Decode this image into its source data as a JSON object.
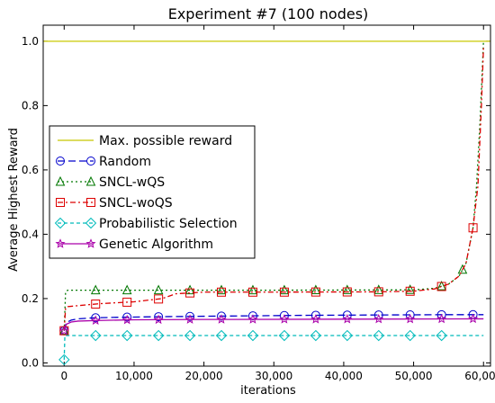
{
  "chart_data": {
    "type": "line",
    "title": "Experiment #7 (100 nodes)",
    "xlabel": "iterations",
    "ylabel": "Average Highest Reward",
    "xlim": [
      -3000,
      61000
    ],
    "ylim": [
      -0.01,
      1.05
    ],
    "xticks": [
      0,
      10000,
      20000,
      30000,
      40000,
      50000,
      60000
    ],
    "xtick_labels": [
      "0",
      "10,000",
      "20,000",
      "30,000",
      "40,000",
      "50,000",
      "60,000"
    ],
    "yticks": [
      0.0,
      0.2,
      0.4,
      0.6,
      0.8,
      1.0
    ],
    "ytick_labels": [
      "0.0",
      "0.2",
      "0.4",
      "0.6",
      "0.8",
      "1.0"
    ],
    "legend_position": "center-left",
    "grid": false,
    "series": [
      {
        "name": "Max. possible reward",
        "color": "#c8c800",
        "dash": "",
        "marker": "none",
        "x": [
          -3000,
          61000
        ],
        "y": [
          1.0,
          1.0
        ],
        "marker_x": []
      },
      {
        "name": "Random",
        "color": "#0000cc",
        "dash": "8,4",
        "marker": "circle",
        "x": [
          0,
          300,
          1000,
          2000,
          4000,
          8000,
          15000,
          25000,
          35000,
          45000,
          55000,
          60000
        ],
        "y": [
          0.1,
          0.125,
          0.133,
          0.137,
          0.14,
          0.142,
          0.144,
          0.146,
          0.148,
          0.149,
          0.15,
          0.15
        ],
        "marker_x": [
          0,
          4500,
          9000,
          13500,
          18000,
          22500,
          27000,
          31500,
          36000,
          40500,
          45000,
          49500,
          54000,
          58500
        ]
      },
      {
        "name": "SNCL-wQS",
        "color": "#007700",
        "dash": "2,3",
        "marker": "triangle",
        "x": [
          0,
          200,
          500,
          2000,
          10000,
          30000,
          50000,
          53000,
          55000,
          56500,
          57500,
          58500,
          59000,
          59500,
          60000
        ],
        "y": [
          0.1,
          0.22,
          0.226,
          0.226,
          0.226,
          0.226,
          0.227,
          0.232,
          0.245,
          0.27,
          0.31,
          0.42,
          0.55,
          0.75,
          1.0
        ],
        "marker_x": [
          0,
          4500,
          9000,
          13500,
          18000,
          22500,
          27000,
          31500,
          36000,
          40500,
          45000,
          49500,
          54000,
          57000
        ]
      },
      {
        "name": "SNCL-woQS",
        "color": "#dd0000",
        "dash": "6,3,2,3",
        "marker": "square",
        "x": [
          0,
          200,
          500,
          2000,
          5000,
          10000,
          14000,
          16000,
          20000,
          30000,
          45000,
          50000,
          53000,
          55000,
          56500,
          57500,
          58500,
          59200,
          59700,
          60000
        ],
        "y": [
          0.1,
          0.17,
          0.175,
          0.178,
          0.184,
          0.19,
          0.2,
          0.215,
          0.22,
          0.22,
          0.221,
          0.223,
          0.23,
          0.245,
          0.27,
          0.31,
          0.42,
          0.55,
          0.8,
          0.98
        ],
        "marker_x": [
          0,
          4500,
          9000,
          13500,
          18000,
          22500,
          27000,
          31500,
          36000,
          40500,
          45000,
          49500,
          54000,
          58500
        ]
      },
      {
        "name": "Probabilistic Selection",
        "color": "#00bbbb",
        "dash": "4,3",
        "marker": "diamond",
        "x": [
          0,
          100,
          500,
          60000
        ],
        "y": [
          0.01,
          0.085,
          0.085,
          0.085
        ],
        "marker_x": [
          0,
          4500,
          9000,
          13500,
          18000,
          22500,
          27000,
          31500,
          36000,
          40500,
          45000,
          49500,
          54000
        ]
      },
      {
        "name": "Genetic Algorithm",
        "color": "#aa00aa",
        "dash": "",
        "marker": "star",
        "x": [
          0,
          300,
          1000,
          2000,
          5000,
          10000,
          20000,
          40000,
          60000
        ],
        "y": [
          0.1,
          0.12,
          0.127,
          0.13,
          0.132,
          0.134,
          0.135,
          0.136,
          0.137
        ],
        "marker_x": [
          0,
          4500,
          9000,
          13500,
          18000,
          22500,
          27000,
          31500,
          36000,
          40500,
          45000,
          49500,
          54000,
          58500
        ]
      }
    ]
  }
}
